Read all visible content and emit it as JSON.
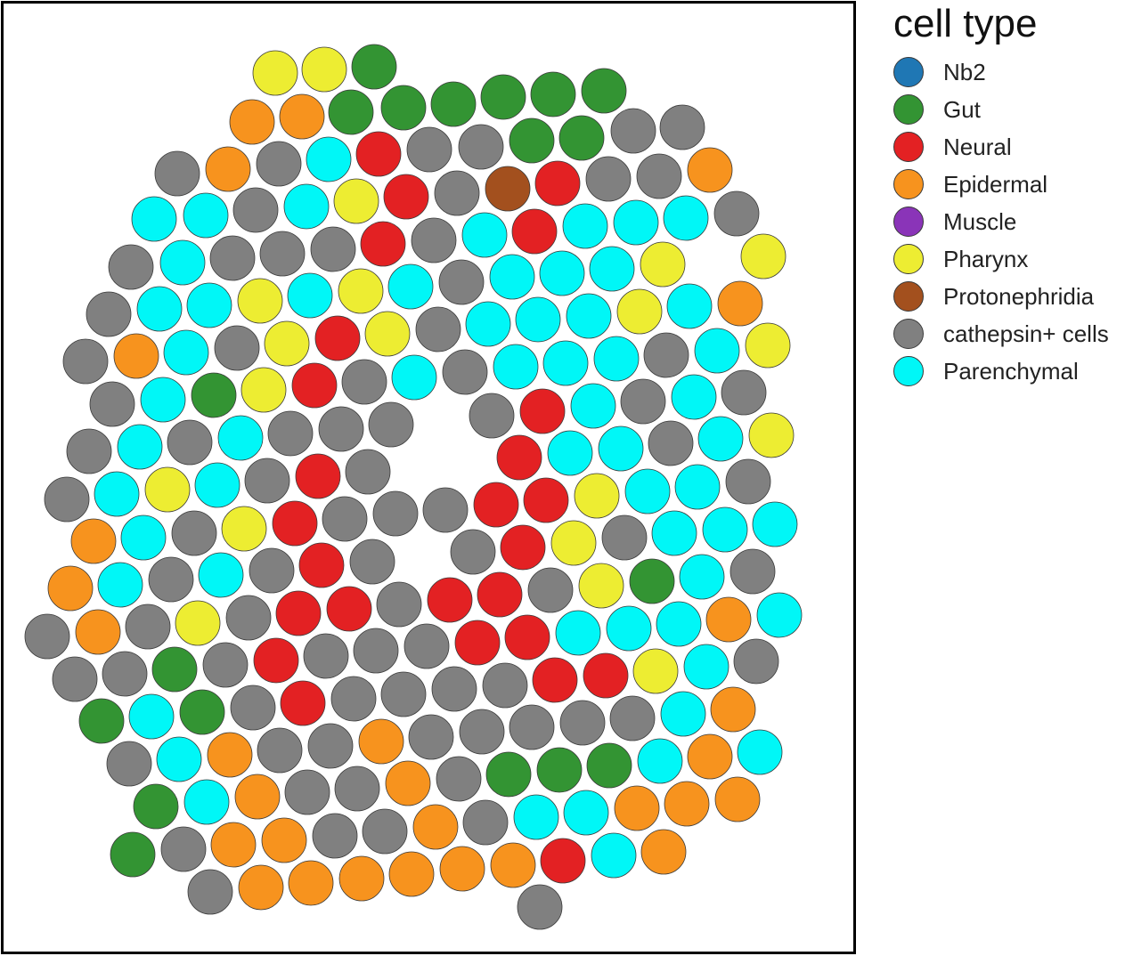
{
  "chart_data": {
    "type": "scatter",
    "title": "",
    "xlabel": "",
    "ylabel": "",
    "xlim": [
      0,
      960
    ],
    "ylim": [
      0,
      1074
    ],
    "grid": false,
    "legend_placement": "right",
    "legend_title": "cell type",
    "categories": [
      {
        "key": "nb2",
        "label": "Nb2",
        "color": "#1f77b4"
      },
      {
        "key": "gut",
        "label": "Gut",
        "color": "#339433"
      },
      {
        "key": "neural",
        "label": "Neural",
        "color": "#e32123"
      },
      {
        "key": "epidermal",
        "label": "Epidermal",
        "color": "#f7931e"
      },
      {
        "key": "muscle",
        "label": "Muscle",
        "color": "#8a34b8"
      },
      {
        "key": "pharynx",
        "label": "Pharynx",
        "color": "#eded32"
      },
      {
        "key": "protonephridia",
        "label": "Protonephridia",
        "color": "#a3501e"
      },
      {
        "key": "cathepsin",
        "label": "cathepsin+ cells",
        "color": "#808080"
      },
      {
        "key": "parenchymal",
        "label": "Parenchymal",
        "color": "#00f7f7"
      }
    ],
    "points": [
      [
        "gut",
        420,
        75
      ],
      [
        "pharynx",
        309,
        82
      ],
      [
        "pharynx",
        364,
        78
      ],
      [
        "epidermal",
        283,
        137
      ],
      [
        "epidermal",
        339,
        131
      ],
      [
        "gut",
        394,
        126
      ],
      [
        "gut",
        453,
        121
      ],
      [
        "gut",
        509,
        117
      ],
      [
        "gut",
        565,
        109
      ],
      [
        "gut",
        621,
        106
      ],
      [
        "gut",
        678,
        102
      ],
      [
        "cathepsin",
        711,
        147
      ],
      [
        "cathepsin",
        766,
        143
      ],
      [
        "gut",
        597,
        158
      ],
      [
        "gut",
        653,
        155
      ],
      [
        "cathepsin",
        540,
        165
      ],
      [
        "cathepsin",
        482,
        168
      ],
      [
        "neural",
        425,
        173
      ],
      [
        "parenchymal",
        369,
        179
      ],
      [
        "cathepsin",
        313,
        184
      ],
      [
        "epidermal",
        256,
        190
      ],
      [
        "cathepsin",
        199,
        195
      ],
      [
        "epidermal",
        797,
        191
      ],
      [
        "cathepsin",
        740,
        198
      ],
      [
        "cathepsin",
        683,
        201
      ],
      [
        "neural",
        626,
        206
      ],
      [
        "protonephridia",
        570,
        212
      ],
      [
        "cathepsin",
        513,
        217
      ],
      [
        "neural",
        456,
        221
      ],
      [
        "pharynx",
        400,
        226
      ],
      [
        "parenchymal",
        344,
        232
      ],
      [
        "cathepsin",
        287,
        236
      ],
      [
        "parenchymal",
        231,
        242
      ],
      [
        "parenchymal",
        173,
        246
      ],
      [
        "cathepsin",
        827,
        240
      ],
      [
        "parenchymal",
        770,
        245
      ],
      [
        "parenchymal",
        714,
        250
      ],
      [
        "parenchymal",
        657,
        254
      ],
      [
        "neural",
        600,
        260
      ],
      [
        "parenchymal",
        544,
        264
      ],
      [
        "cathepsin",
        487,
        270
      ],
      [
        "neural",
        430,
        274
      ],
      [
        "cathepsin",
        374,
        280
      ],
      [
        "cathepsin",
        317,
        285
      ],
      [
        "cathepsin",
        261,
        290
      ],
      [
        "parenchymal",
        205,
        295
      ],
      [
        "cathepsin",
        147,
        300
      ],
      [
        "pharynx",
        857,
        288
      ],
      [
        "pharynx",
        744,
        297
      ],
      [
        "parenchymal",
        687,
        302
      ],
      [
        "parenchymal",
        631,
        307
      ],
      [
        "parenchymal",
        575,
        311
      ],
      [
        "cathepsin",
        518,
        317
      ],
      [
        "parenchymal",
        461,
        322
      ],
      [
        "pharynx",
        405,
        327
      ],
      [
        "parenchymal",
        348,
        332
      ],
      [
        "pharynx",
        292,
        338
      ],
      [
        "parenchymal",
        235,
        343
      ],
      [
        "parenchymal",
        179,
        347
      ],
      [
        "cathepsin",
        122,
        353
      ],
      [
        "epidermal",
        831,
        341
      ],
      [
        "parenchymal",
        774,
        344
      ],
      [
        "pharynx",
        718,
        350
      ],
      [
        "parenchymal",
        661,
        355
      ],
      [
        "parenchymal",
        604,
        359
      ],
      [
        "parenchymal",
        548,
        364
      ],
      [
        "cathepsin",
        492,
        370
      ],
      [
        "pharynx",
        435,
        375
      ],
      [
        "neural",
        379,
        380
      ],
      [
        "pharynx",
        322,
        386
      ],
      [
        "cathepsin",
        266,
        391
      ],
      [
        "parenchymal",
        209,
        396
      ],
      [
        "epidermal",
        153,
        400
      ],
      [
        "cathepsin",
        96,
        406
      ],
      [
        "pharynx",
        862,
        388
      ],
      [
        "parenchymal",
        805,
        394
      ],
      [
        "cathepsin",
        748,
        399
      ],
      [
        "parenchymal",
        692,
        403
      ],
      [
        "parenchymal",
        635,
        408
      ],
      [
        "parenchymal",
        579,
        412
      ],
      [
        "cathepsin",
        522,
        418
      ],
      [
        "parenchymal",
        465,
        424
      ],
      [
        "cathepsin",
        409,
        429
      ],
      [
        "neural",
        353,
        433
      ],
      [
        "pharynx",
        296,
        438
      ],
      [
        "gut",
        240,
        444
      ],
      [
        "parenchymal",
        183,
        449
      ],
      [
        "cathepsin",
        126,
        454
      ],
      [
        "cathepsin",
        835,
        441
      ],
      [
        "parenchymal",
        779,
        446
      ],
      [
        "cathepsin",
        722,
        451
      ],
      [
        "parenchymal",
        666,
        456
      ],
      [
        "neural",
        609,
        462
      ],
      [
        "cathepsin",
        552,
        467
      ],
      [
        "cathepsin",
        439,
        477
      ],
      [
        "cathepsin",
        383,
        482
      ],
      [
        "cathepsin",
        326,
        487
      ],
      [
        "parenchymal",
        270,
        492
      ],
      [
        "cathepsin",
        213,
        497
      ],
      [
        "parenchymal",
        157,
        502
      ],
      [
        "cathepsin",
        100,
        507
      ],
      [
        "pharynx",
        866,
        489
      ],
      [
        "parenchymal",
        809,
        493
      ],
      [
        "cathepsin",
        753,
        498
      ],
      [
        "parenchymal",
        697,
        504
      ],
      [
        "parenchymal",
        640,
        509
      ],
      [
        "neural",
        583,
        514
      ],
      [
        "cathepsin",
        413,
        530
      ],
      [
        "neural",
        357,
        535
      ],
      [
        "cathepsin",
        300,
        540
      ],
      [
        "parenchymal",
        244,
        545
      ],
      [
        "pharynx",
        188,
        550
      ],
      [
        "parenchymal",
        131,
        555
      ],
      [
        "cathepsin",
        75,
        561
      ],
      [
        "cathepsin",
        840,
        541
      ],
      [
        "parenchymal",
        783,
        547
      ],
      [
        "parenchymal",
        727,
        552
      ],
      [
        "pharynx",
        670,
        557
      ],
      [
        "neural",
        613,
        562
      ],
      [
        "neural",
        557,
        567
      ],
      [
        "cathepsin",
        500,
        573
      ],
      [
        "cathepsin",
        444,
        577
      ],
      [
        "cathepsin",
        387,
        583
      ],
      [
        "neural",
        331,
        588
      ],
      [
        "pharynx",
        274,
        594
      ],
      [
        "cathepsin",
        218,
        599
      ],
      [
        "parenchymal",
        161,
        604
      ],
      [
        "epidermal",
        105,
        608
      ],
      [
        "parenchymal",
        870,
        589
      ],
      [
        "parenchymal",
        814,
        595
      ],
      [
        "parenchymal",
        757,
        599
      ],
      [
        "cathepsin",
        701,
        604
      ],
      [
        "pharynx",
        644,
        610
      ],
      [
        "neural",
        587,
        615
      ],
      [
        "cathepsin",
        531,
        620
      ],
      [
        "cathepsin",
        418,
        631
      ],
      [
        "neural",
        361,
        635
      ],
      [
        "cathepsin",
        305,
        641
      ],
      [
        "parenchymal",
        248,
        646
      ],
      [
        "cathepsin",
        192,
        651
      ],
      [
        "parenchymal",
        135,
        657
      ],
      [
        "epidermal",
        79,
        661
      ],
      [
        "cathepsin",
        845,
        642
      ],
      [
        "parenchymal",
        788,
        648
      ],
      [
        "gut",
        732,
        653
      ],
      [
        "pharynx",
        675,
        658
      ],
      [
        "cathepsin",
        618,
        663
      ],
      [
        "neural",
        561,
        668
      ],
      [
        "neural",
        505,
        674
      ],
      [
        "cathepsin",
        448,
        679
      ],
      [
        "neural",
        392,
        684
      ],
      [
        "neural",
        335,
        689
      ],
      [
        "cathepsin",
        279,
        694
      ],
      [
        "pharynx",
        222,
        700
      ],
      [
        "cathepsin",
        166,
        704
      ],
      [
        "epidermal",
        110,
        710
      ],
      [
        "cathepsin",
        53,
        715
      ],
      [
        "parenchymal",
        875,
        691
      ],
      [
        "epidermal",
        818,
        696
      ],
      [
        "parenchymal",
        762,
        701
      ],
      [
        "parenchymal",
        706,
        706
      ],
      [
        "parenchymal",
        649,
        711
      ],
      [
        "neural",
        592,
        716
      ],
      [
        "neural",
        536,
        722
      ],
      [
        "cathepsin",
        479,
        726
      ],
      [
        "cathepsin",
        422,
        731
      ],
      [
        "cathepsin",
        366,
        737
      ],
      [
        "neural",
        310,
        742
      ],
      [
        "cathepsin",
        253,
        747
      ],
      [
        "gut",
        196,
        752
      ],
      [
        "cathepsin",
        140,
        757
      ],
      [
        "cathepsin",
        84,
        763
      ],
      [
        "cathepsin",
        849,
        743
      ],
      [
        "parenchymal",
        793,
        749
      ],
      [
        "pharynx",
        736,
        754
      ],
      [
        "neural",
        680,
        759
      ],
      [
        "neural",
        623,
        764
      ],
      [
        "cathepsin",
        567,
        770
      ],
      [
        "cathepsin",
        510,
        774
      ],
      [
        "cathepsin",
        453,
        780
      ],
      [
        "cathepsin",
        397,
        785
      ],
      [
        "neural",
        340,
        790
      ],
      [
        "cathepsin",
        284,
        795
      ],
      [
        "gut",
        227,
        800
      ],
      [
        "parenchymal",
        170,
        805
      ],
      [
        "gut",
        114,
        810
      ],
      [
        "epidermal",
        823,
        797
      ],
      [
        "parenchymal",
        767,
        802
      ],
      [
        "cathepsin",
        710,
        807
      ],
      [
        "cathepsin",
        654,
        812
      ],
      [
        "cathepsin",
        597,
        817
      ],
      [
        "cathepsin",
        541,
        822
      ],
      [
        "cathepsin",
        484,
        828
      ],
      [
        "epidermal",
        428,
        833
      ],
      [
        "cathepsin",
        371,
        838
      ],
      [
        "cathepsin",
        314,
        843
      ],
      [
        "epidermal",
        258,
        848
      ],
      [
        "parenchymal",
        201,
        853
      ],
      [
        "cathepsin",
        145,
        858
      ],
      [
        "parenchymal",
        853,
        845
      ],
      [
        "epidermal",
        797,
        850
      ],
      [
        "parenchymal",
        741,
        855
      ],
      [
        "gut",
        684,
        860
      ],
      [
        "gut",
        628,
        865
      ],
      [
        "gut",
        571,
        870
      ],
      [
        "cathepsin",
        515,
        875
      ],
      [
        "epidermal",
        458,
        880
      ],
      [
        "cathepsin",
        401,
        886
      ],
      [
        "cathepsin",
        345,
        890
      ],
      [
        "epidermal",
        289,
        895
      ],
      [
        "parenchymal",
        232,
        901
      ],
      [
        "gut",
        175,
        906
      ],
      [
        "epidermal",
        828,
        898
      ],
      [
        "epidermal",
        771,
        903
      ],
      [
        "epidermal",
        715,
        908
      ],
      [
        "parenchymal",
        658,
        913
      ],
      [
        "parenchymal",
        602,
        918
      ],
      [
        "cathepsin",
        545,
        924
      ],
      [
        "epidermal",
        489,
        929
      ],
      [
        "cathepsin",
        432,
        934
      ],
      [
        "cathepsin",
        376,
        939
      ],
      [
        "epidermal",
        319,
        944
      ],
      [
        "epidermal",
        262,
        949
      ],
      [
        "cathepsin",
        206,
        954
      ],
      [
        "gut",
        149,
        960
      ],
      [
        "epidermal",
        745,
        957
      ],
      [
        "parenchymal",
        689,
        961
      ],
      [
        "neural",
        632,
        967
      ],
      [
        "epidermal",
        576,
        972
      ],
      [
        "epidermal",
        519,
        976
      ],
      [
        "epidermal",
        462,
        982
      ],
      [
        "epidermal",
        406,
        987
      ],
      [
        "epidermal",
        349,
        992
      ],
      [
        "epidermal",
        293,
        997
      ],
      [
        "cathepsin",
        236,
        1002
      ],
      [
        "cathepsin",
        606,
        1019
      ]
    ]
  }
}
